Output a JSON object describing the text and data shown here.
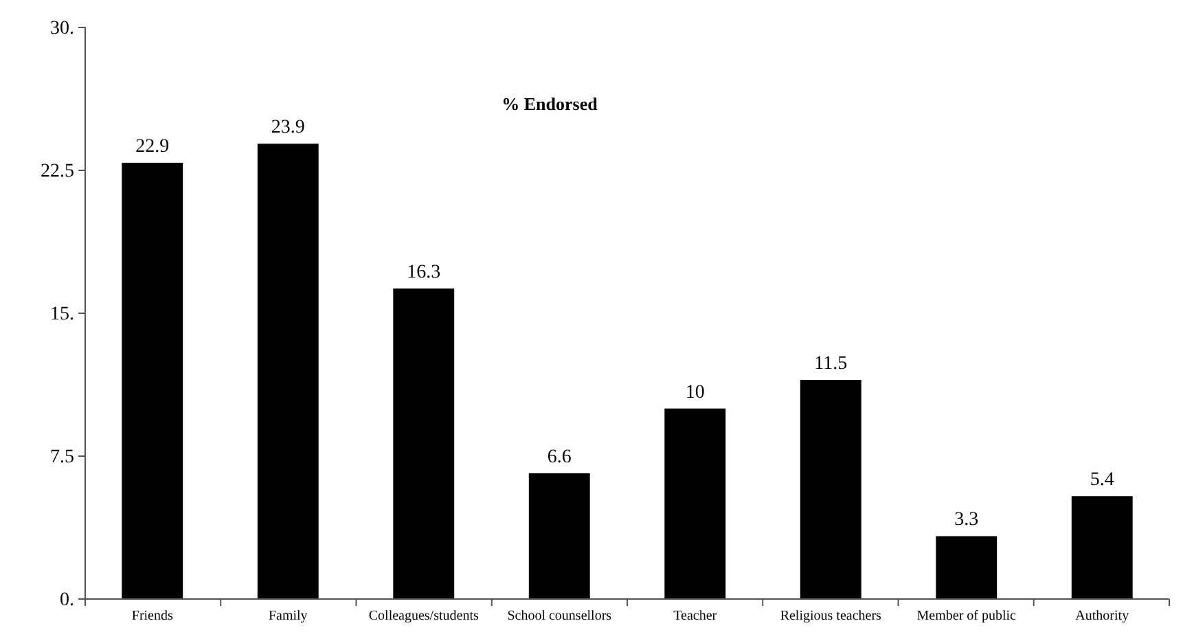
{
  "chart_data": {
    "type": "bar",
    "title": "% Endorsed",
    "categories": [
      "Friends",
      "Family",
      "Colleagues/students",
      "School counsellors",
      "Teacher",
      "Religious teachers",
      "Member of public",
      "Authority"
    ],
    "values": [
      22.9,
      23.9,
      16.3,
      6.6,
      10,
      11.5,
      3.3,
      5.4
    ],
    "color": "#000000",
    "ylim": [
      0,
      30
    ],
    "yticks": [
      {
        "value": 0,
        "label": "0."
      },
      {
        "value": 7.5,
        "label": "7.5"
      },
      {
        "value": 15,
        "label": "15."
      },
      {
        "value": 22.5,
        "label": "22.5"
      },
      {
        "value": 30,
        "label": "30."
      }
    ],
    "data_labels": true
  }
}
